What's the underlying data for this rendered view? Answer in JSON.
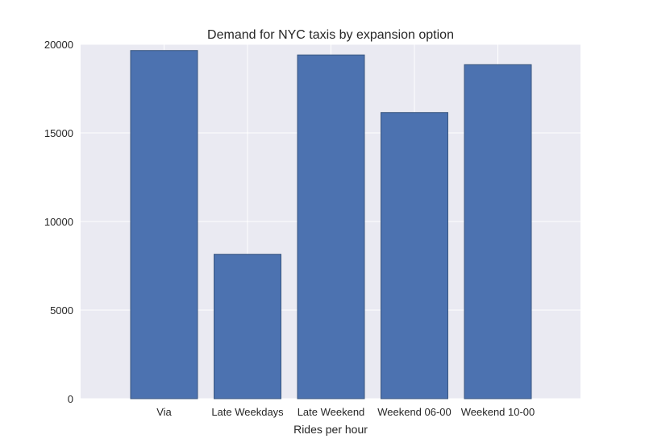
{
  "chart_data": {
    "type": "bar",
    "title": "Demand for NYC taxis by expansion option",
    "xlabel": "Rides per hour",
    "ylabel": "",
    "categories": [
      "Via",
      "Late Weekdays",
      "Late Weekend",
      "Weekend 06-00",
      "Weekend 10-00"
    ],
    "values": [
      19650,
      8150,
      19400,
      16150,
      18850
    ],
    "ylim": [
      0,
      20000
    ],
    "yticks": [
      0,
      5000,
      10000,
      15000,
      20000
    ],
    "ytick_labels": [
      "0",
      "5000",
      "10000",
      "15000",
      "20000"
    ],
    "grid": true,
    "bar_color": "#4C72B0",
    "background_color": "#EAEAF2"
  }
}
